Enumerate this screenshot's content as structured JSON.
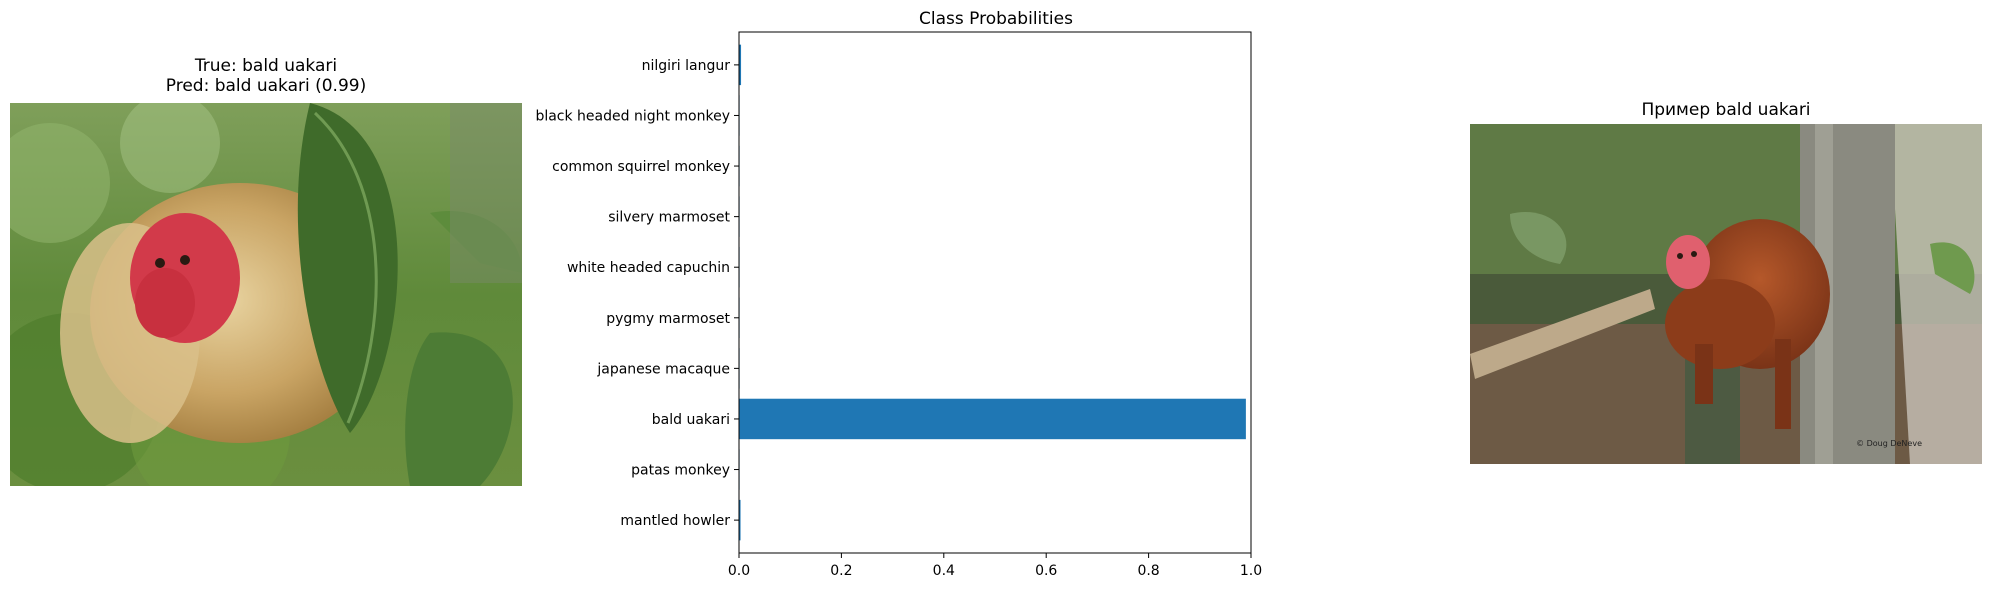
{
  "left_panel": {
    "title_line1": "True: bald uakari",
    "title_line2": "Pred: bald uakari (0.99)"
  },
  "right_panel": {
    "title": "Пример bald uakari",
    "photo_credit": "© Doug DeNeve"
  },
  "chart_data": {
    "type": "bar",
    "orientation": "horizontal",
    "title": "Class Probabilities",
    "xlabel": "",
    "ylabel": "",
    "categories": [
      "nilgiri langur",
      "black headed night monkey",
      "common squirrel monkey",
      "silvery marmoset",
      "white headed capuchin",
      "pygmy marmoset",
      "japanese macaque",
      "bald uakari",
      "patas monkey",
      "mantled howler"
    ],
    "values": [
      0.004,
      0.0005,
      0.0005,
      0.0005,
      0.0005,
      0.0005,
      0.0005,
      0.99,
      0.0005,
      0.003
    ],
    "xlim": [
      0.0,
      1.0
    ],
    "xticks": [
      "0.0",
      "0.2",
      "0.4",
      "0.6",
      "0.8",
      "1.0"
    ],
    "bar_color": "#1f77b4",
    "grid": false
  }
}
